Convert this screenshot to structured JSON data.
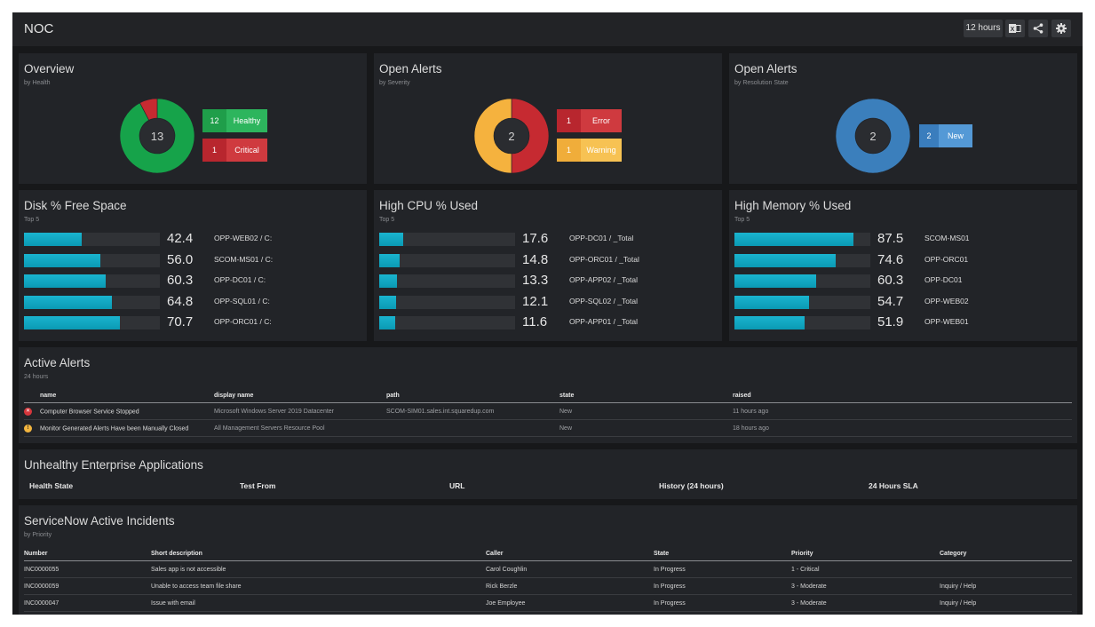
{
  "app": {
    "title": "NOC"
  },
  "toolbar": {
    "range_label": "12 hours",
    "export_icon": "excel-icon",
    "share_icon": "share-icon",
    "settings_icon": "gear-icon"
  },
  "overview": {
    "title": "Overview",
    "subtitle": "by Health",
    "center": "13",
    "chart_data": {
      "type": "pie",
      "categories": [
        "Healthy",
        "Critical"
      ],
      "values": [
        12,
        1
      ],
      "colors": [
        "#16a34a",
        "#c62a31"
      ]
    },
    "legend": [
      {
        "value": "12",
        "label": "Healthy",
        "color": "#1f9e4a",
        "label_color": "#2db55d"
      },
      {
        "value": "1",
        "label": "Critical",
        "color": "#b8262e",
        "label_color": "#cf3a3f"
      }
    ]
  },
  "alerts_severity": {
    "title": "Open Alerts",
    "subtitle": "by Severity",
    "center": "2",
    "chart_data": {
      "type": "pie",
      "categories": [
        "Error",
        "Warning"
      ],
      "values": [
        1,
        1
      ],
      "colors": [
        "#c62a31",
        "#f5b23e"
      ]
    },
    "legend": [
      {
        "value": "1",
        "label": "Error",
        "color": "#b8262e",
        "label_color": "#cf3a3f"
      },
      {
        "value": "1",
        "label": "Warning",
        "color": "#f0ad3a",
        "label_color": "#f7c253"
      }
    ]
  },
  "alerts_resolution": {
    "title": "Open Alerts",
    "subtitle": "by Resolution State",
    "center": "2",
    "chart_data": {
      "type": "pie",
      "categories": [
        "New"
      ],
      "values": [
        2
      ],
      "colors": [
        "#3b7fbc"
      ]
    },
    "legend": [
      {
        "value": "2",
        "label": "New",
        "color": "#3a7dbd",
        "label_color": "#5499d6"
      }
    ]
  },
  "disk": {
    "title": "Disk % Free Space",
    "subtitle": "Top 5",
    "chart_data": {
      "type": "bar",
      "categories": [
        "OPP-WEB02 / C:",
        "SCOM-MS01 / C:",
        "OPP-DC01 / C:",
        "OPP-SQL01 / C:",
        "OPP-ORC01 / C:"
      ],
      "values": [
        42.4,
        56.0,
        60.3,
        64.8,
        70.7
      ],
      "ylim": [
        0,
        100
      ]
    },
    "values_text": [
      "42.4",
      "56.0",
      "60.3",
      "64.8",
      "70.7"
    ]
  },
  "cpu": {
    "title": "High CPU % Used",
    "subtitle": "Top 5",
    "chart_data": {
      "type": "bar",
      "categories": [
        "OPP-DC01 / _Total",
        "OPP-ORC01 / _Total",
        "OPP-APP02 / _Total",
        "OPP-SQL02 / _Total",
        "OPP-APP01 / _Total"
      ],
      "values": [
        17.6,
        14.8,
        13.3,
        12.1,
        11.6
      ],
      "ylim": [
        0,
        100
      ]
    },
    "values_text": [
      "17.6",
      "14.8",
      "13.3",
      "12.1",
      "11.6"
    ]
  },
  "memory": {
    "title": "High Memory % Used",
    "subtitle": "Top 5",
    "chart_data": {
      "type": "bar",
      "categories": [
        "SCOM-MS01",
        "OPP-ORC01",
        "OPP-DC01",
        "OPP-WEB02",
        "OPP-WEB01"
      ],
      "values": [
        87.5,
        74.6,
        60.3,
        54.7,
        51.9
      ],
      "ylim": [
        0,
        100
      ]
    },
    "values_text": [
      "87.5",
      "74.6",
      "60.3",
      "54.7",
      "51.9"
    ]
  },
  "active_alerts": {
    "title": "Active Alerts",
    "subtitle": "24 hours",
    "columns": [
      "name",
      "display name",
      "path",
      "state",
      "raised"
    ],
    "rows": [
      {
        "severity": "error",
        "icon": "error-icon",
        "name": "Computer Browser Service Stopped",
        "display_name": "Microsoft Windows Server 2019 Datacenter",
        "path": "SCOM-SIM01.sales.int.squaredup.com",
        "state": "New",
        "raised": "11 hours ago"
      },
      {
        "severity": "warning",
        "icon": "warning-icon",
        "name": "Monitor Generated Alerts Have been Manually Closed",
        "display_name": "All Management Servers Resource Pool",
        "path": "",
        "state": "New",
        "raised": "18 hours ago"
      }
    ]
  },
  "enterprise": {
    "title": "Unhealthy Enterprise Applications",
    "columns": [
      "Health State",
      "Test From",
      "URL",
      "History (24 hours)",
      "24 Hours SLA"
    ]
  },
  "servicenow": {
    "title": "ServiceNow Active Incidents",
    "subtitle": "by Priority",
    "columns": [
      "Number",
      "Short description",
      "Caller",
      "State",
      "Priority",
      "Category"
    ],
    "rows": [
      [
        "INC0000055",
        "Sales app is not accessible",
        "Carol Coughlin",
        "In Progress",
        "1 - Critical",
        ""
      ],
      [
        "INC0000059",
        "Unable to access team file share",
        "Rick Berzle",
        "In Progress",
        "3 - Moderate",
        "Inquiry / Help"
      ],
      [
        "INC0000047",
        "Issue with email",
        "Joe Employee",
        "In Progress",
        "3 - Moderate",
        "Inquiry / Help"
      ]
    ]
  }
}
